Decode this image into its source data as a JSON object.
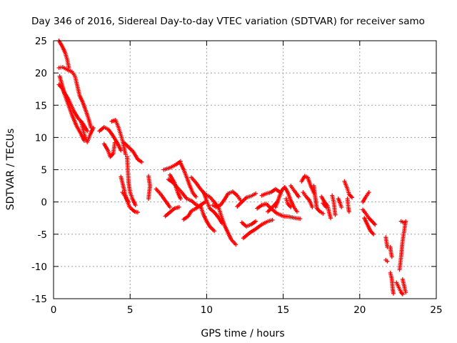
{
  "chart_data": {
    "type": "scatter",
    "title": "Day 346 of 2016, Sidereal Day-to-day VTEC variation (SDTVAR) for receiver samo",
    "xlabel": "GPS time / hours",
    "ylabel": "SDTVAR / TECUs",
    "xlim": [
      0,
      25
    ],
    "ylim": [
      -15,
      25
    ],
    "x_ticks": [
      0,
      5,
      10,
      15,
      20,
      25
    ],
    "y_ticks": [
      -15,
      -10,
      -5,
      0,
      5,
      10,
      15,
      20,
      25
    ],
    "grid": true,
    "marker": "+",
    "series": [
      {
        "name": "SDTVAR",
        "color": "#ff0000",
        "tracks": [
          [
            [
              0.35,
              25
            ],
            [
              0.55,
              24.2
            ],
            [
              0.75,
              23.2
            ],
            [
              0.9,
              22
            ],
            [
              1.0,
              20.8
            ]
          ],
          [
            [
              0.35,
              20.8
            ],
            [
              0.6,
              20.9
            ],
            [
              0.9,
              20.5
            ],
            [
              1.2,
              20.2
            ],
            [
              1.4,
              19.5
            ],
            [
              1.55,
              18
            ],
            [
              1.7,
              16.5
            ],
            [
              1.9,
              15.5
            ],
            [
              2.1,
              14.2
            ],
            [
              2.3,
              12.8
            ],
            [
              2.45,
              11.5
            ]
          ],
          [
            [
              0.35,
              18.2
            ],
            [
              0.6,
              17.5
            ],
            [
              0.9,
              15.5
            ],
            [
              1.2,
              13.5
            ],
            [
              1.5,
              11.8
            ],
            [
              1.8,
              10.5
            ],
            [
              2.0,
              9.5
            ]
          ],
          [
            [
              0.4,
              19.5
            ],
            [
              0.7,
              17
            ],
            [
              1.0,
              15.8
            ],
            [
              1.3,
              14.2
            ],
            [
              1.6,
              13
            ],
            [
              1.9,
              12.2
            ],
            [
              2.2,
              11
            ]
          ],
          [
            [
              1.8,
              12.5
            ],
            [
              2.0,
              10.5
            ],
            [
              2.2,
              9.3
            ],
            [
              2.4,
              10.5
            ],
            [
              2.6,
              11.5
            ]
          ],
          [
            [
              3.0,
              11
            ],
            [
              3.3,
              11.6
            ],
            [
              3.6,
              11.2
            ],
            [
              3.9,
              10.2
            ],
            [
              4.2,
              9
            ],
            [
              4.4,
              8
            ]
          ],
          [
            [
              3.3,
              9
            ],
            [
              3.55,
              8
            ],
            [
              3.7,
              7
            ],
            [
              3.9,
              7.5
            ],
            [
              4.0,
              9.2
            ]
          ],
          [
            [
              3.8,
              12.5
            ],
            [
              4.05,
              12.7
            ],
            [
              4.25,
              11.5
            ],
            [
              4.45,
              10
            ],
            [
              4.6,
              8.5
            ],
            [
              4.7,
              7.4
            ]
          ],
          [
            [
              4.6,
              9.2
            ],
            [
              4.9,
              8.5
            ],
            [
              5.2,
              7.8
            ],
            [
              5.5,
              6.6
            ],
            [
              5.75,
              6.2
            ]
          ],
          [
            [
              4.4,
              3.9
            ],
            [
              4.6,
              2
            ],
            [
              4.75,
              0.5
            ],
            [
              4.95,
              -0.7
            ],
            [
              5.1,
              -1.1
            ],
            [
              5.3,
              -1.5
            ],
            [
              5.5,
              -1.6
            ]
          ],
          [
            [
              4.8,
              7
            ],
            [
              4.85,
              5
            ],
            [
              4.9,
              3
            ],
            [
              5.0,
              1.5
            ],
            [
              5.15,
              0.5
            ],
            [
              5.35,
              -0.5
            ]
          ],
          [
            [
              4.5,
              1.5
            ],
            [
              4.7,
              0.8
            ],
            [
              4.9,
              0
            ]
          ],
          [
            [
              6.2,
              4.0
            ],
            [
              6.3,
              2.5
            ],
            [
              6.2,
              0.5
            ]
          ],
          [
            [
              6.7,
              2
            ],
            [
              7.0,
              1.2
            ],
            [
              7.3,
              0.2
            ],
            [
              7.6,
              -0.8
            ]
          ],
          [
            [
              7.5,
              3.5
            ],
            [
              7.8,
              3.0
            ],
            [
              8.1,
              2.2
            ],
            [
              8.4,
              1.4
            ],
            [
              8.7,
              0.5
            ],
            [
              9.0,
              0.2
            ],
            [
              9.3,
              -0.4
            ],
            [
              9.6,
              -0.8
            ]
          ],
          [
            [
              7.2,
              5.0
            ],
            [
              7.6,
              5.3
            ],
            [
              8.0,
              5.8
            ],
            [
              8.3,
              6.3
            ]
          ],
          [
            [
              8.3,
              6.0
            ],
            [
              8.5,
              5.0
            ],
            [
              8.7,
              3.8
            ],
            [
              8.9,
              2.5
            ],
            [
              9.1,
              1.4
            ],
            [
              9.3,
              0.8
            ]
          ],
          [
            [
              7.3,
              -2.2
            ],
            [
              7.6,
              -1.6
            ],
            [
              7.9,
              -1.0
            ],
            [
              8.2,
              -0.8
            ]
          ],
          [
            [
              7.6,
              4.2
            ],
            [
              7.9,
              3.0
            ],
            [
              8.1,
              1.5
            ],
            [
              8.3,
              0.5
            ]
          ],
          [
            [
              8.5,
              -2.7
            ],
            [
              8.8,
              -2.2
            ],
            [
              9.0,
              -1.4
            ],
            [
              9.3,
              -1.0
            ],
            [
              9.6,
              -0.5
            ],
            [
              9.9,
              0.0
            ]
          ],
          [
            [
              9.0,
              3.8
            ],
            [
              9.3,
              3.0
            ],
            [
              9.6,
              2.0
            ],
            [
              9.9,
              1.2
            ],
            [
              10.2,
              0.8
            ],
            [
              10.5,
              0.0
            ],
            [
              10.8,
              -1.0
            ],
            [
              11.0,
              -2.5
            ],
            [
              11.2,
              -3.8
            ],
            [
              11.4,
              -4.8
            ],
            [
              11.6,
              -5.8
            ],
            [
              11.9,
              -6.6
            ]
          ],
          [
            [
              9.8,
              1.5
            ],
            [
              10.0,
              0.2
            ],
            [
              10.2,
              -1.0
            ],
            [
              10.5,
              -1.6
            ],
            [
              10.8,
              -2.5
            ],
            [
              11.0,
              -3.3
            ]
          ],
          [
            [
              9.6,
              -0.6
            ],
            [
              9.8,
              -2.0
            ],
            [
              10.0,
              -3.0
            ],
            [
              10.2,
              -3.8
            ],
            [
              10.5,
              -4.5
            ]
          ],
          [
            [
              10.4,
              -0.5
            ],
            [
              10.6,
              -0.8
            ],
            [
              10.9,
              -0.5
            ],
            [
              11.2,
              0.5
            ],
            [
              11.4,
              1.3
            ],
            [
              11.7,
              1.6
            ],
            [
              12.0,
              1.0
            ],
            [
              12.2,
              0.3
            ]
          ],
          [
            [
              12.3,
              -3.2
            ],
            [
              12.6,
              -3.8
            ],
            [
              12.9,
              -3.5
            ],
            [
              13.2,
              -3.0
            ]
          ],
          [
            [
              12.4,
              -5.6
            ],
            [
              12.8,
              -4.8
            ],
            [
              13.2,
              -4.2
            ],
            [
              13.6,
              -3.5
            ],
            [
              14.0,
              -3.0
            ],
            [
              14.3,
              -2.8
            ]
          ],
          [
            [
              12.0,
              -0.7
            ],
            [
              12.3,
              0.0
            ],
            [
              12.6,
              0.7
            ],
            [
              12.9,
              0.9
            ],
            [
              13.2,
              1.3
            ]
          ],
          [
            [
              13.3,
              -1.0
            ],
            [
              13.6,
              -0.5
            ],
            [
              13.9,
              -0.3
            ],
            [
              14.2,
              -1.0
            ],
            [
              14.6,
              -1.8
            ],
            [
              15.0,
              -2.2
            ],
            [
              15.4,
              -2.3
            ],
            [
              15.8,
              -2.5
            ],
            [
              16.1,
              -2.6
            ]
          ],
          [
            [
              13.6,
              1.0
            ],
            [
              13.9,
              1.3
            ],
            [
              14.2,
              1.5
            ],
            [
              14.5,
              2.0
            ],
            [
              14.8,
              1.5
            ]
          ],
          [
            [
              14.5,
              -0.8
            ],
            [
              14.7,
              0.5
            ],
            [
              14.9,
              1.8
            ],
            [
              15.1,
              2.3
            ],
            [
              15.3,
              1.5
            ],
            [
              15.5,
              0.2
            ],
            [
              15.7,
              -0.8
            ],
            [
              15.9,
              -1.5
            ]
          ],
          [
            [
              14.0,
              -1.5
            ],
            [
              14.3,
              -0.8
            ],
            [
              14.6,
              0.0
            ]
          ],
          [
            [
              15.5,
              2.5
            ],
            [
              15.7,
              1.8
            ],
            [
              15.9,
              1.2
            ],
            [
              16.0,
              0.8
            ]
          ],
          [
            [
              15.2,
              0.5
            ],
            [
              15.3,
              -0.3
            ],
            [
              15.5,
              -0.8
            ]
          ],
          [
            [
              16.2,
              3.2
            ],
            [
              16.4,
              4.0
            ],
            [
              16.6,
              3.8
            ],
            [
              16.8,
              2.5
            ],
            [
              17.0,
              1.4
            ]
          ],
          [
            [
              16.3,
              1.5
            ],
            [
              16.5,
              0.8
            ],
            [
              16.7,
              0.3
            ],
            [
              16.9,
              -0.8
            ]
          ],
          [
            [
              17.0,
              2.5
            ],
            [
              17.1,
              0.6
            ],
            [
              17.2,
              -1.0
            ],
            [
              17.4,
              -1.5
            ],
            [
              17.6,
              -1.8
            ]
          ],
          [
            [
              17.5,
              0.8
            ],
            [
              17.7,
              0.0
            ],
            [
              17.9,
              -0.6
            ],
            [
              18.0,
              -1.6
            ],
            [
              18.1,
              -2.5
            ]
          ],
          [
            [
              18.2,
              1.0
            ],
            [
              18.3,
              0.0
            ],
            [
              18.35,
              -1.0
            ],
            [
              18.4,
              -2.0
            ]
          ],
          [
            [
              17.6,
              -0.2
            ],
            [
              17.8,
              -0.8
            ]
          ],
          [
            [
              18.6,
              0.5
            ],
            [
              18.7,
              -0.1
            ],
            [
              18.8,
              -0.8
            ]
          ],
          [
            [
              19.0,
              3.2
            ],
            [
              19.2,
              2.0
            ],
            [
              19.3,
              1.2
            ],
            [
              19.5,
              0.7
            ]
          ],
          [
            [
              19.2,
              0.5
            ],
            [
              19.25,
              -0.8
            ],
            [
              19.3,
              -1.5
            ]
          ],
          [
            [
              20.2,
              -1.2
            ],
            [
              20.4,
              -1.8
            ],
            [
              20.6,
              -2.5
            ],
            [
              20.8,
              -3.0
            ],
            [
              21.0,
              -3.5
            ]
          ],
          [
            [
              20.3,
              -2.5
            ],
            [
              20.5,
              -3.5
            ],
            [
              20.7,
              -4.5
            ],
            [
              20.9,
              -5.0
            ]
          ],
          [
            [
              20.2,
              0.0
            ],
            [
              20.4,
              0.8
            ],
            [
              20.6,
              1.5
            ]
          ],
          [
            [
              21.7,
              -5.5
            ],
            [
              21.8,
              -7.0
            ]
          ],
          [
            [
              21.7,
              -9.0
            ],
            [
              21.8,
              -9.2
            ]
          ],
          [
            [
              22.0,
              -7.0
            ],
            [
              22.05,
              -8.0
            ],
            [
              22.1,
              -8.5
            ]
          ],
          [
            [
              22.0,
              -11.0
            ],
            [
              22.1,
              -12.0
            ],
            [
              22.15,
              -13.5
            ],
            [
              22.2,
              -14.2
            ]
          ],
          [
            [
              22.4,
              -12.5
            ],
            [
              22.5,
              -13.0
            ],
            [
              22.6,
              -13.5
            ],
            [
              22.7,
              -14.0
            ],
            [
              22.8,
              -14.3
            ]
          ],
          [
            [
              22.6,
              -10.5
            ],
            [
              22.7,
              -8.5
            ],
            [
              22.8,
              -6.0
            ],
            [
              22.9,
              -4.5
            ],
            [
              23.0,
              -3.0
            ]
          ],
          [
            [
              22.7,
              -3.0
            ],
            [
              22.9,
              -3.2
            ]
          ],
          [
            [
              22.8,
              -12.0
            ],
            [
              22.9,
              -13.0
            ],
            [
              23.0,
              -14.0
            ]
          ]
        ]
      }
    ]
  }
}
